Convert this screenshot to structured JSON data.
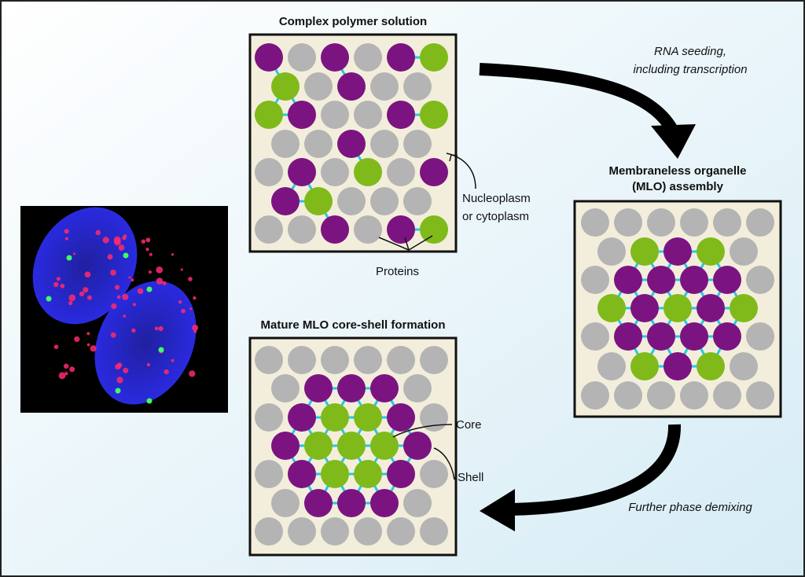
{
  "panels": [
    {
      "title": "Complex polymer solution"
    },
    {
      "title": [
        "Membraneless organelle",
        "(MLO) assembly"
      ]
    },
    {
      "title": "Mature MLO core-shell formation"
    }
  ],
  "arrows": [
    {
      "label": [
        "RNA seeding,",
        "including transcription"
      ]
    },
    {
      "label": "Further phase demixing"
    }
  ],
  "annotations": [
    {
      "label": [
        "Nucleoplasm",
        "or cytoplasm"
      ]
    },
    {
      "label": "Proteins"
    },
    {
      "label": "Core"
    },
    {
      "label": "Shell"
    }
  ]
}
